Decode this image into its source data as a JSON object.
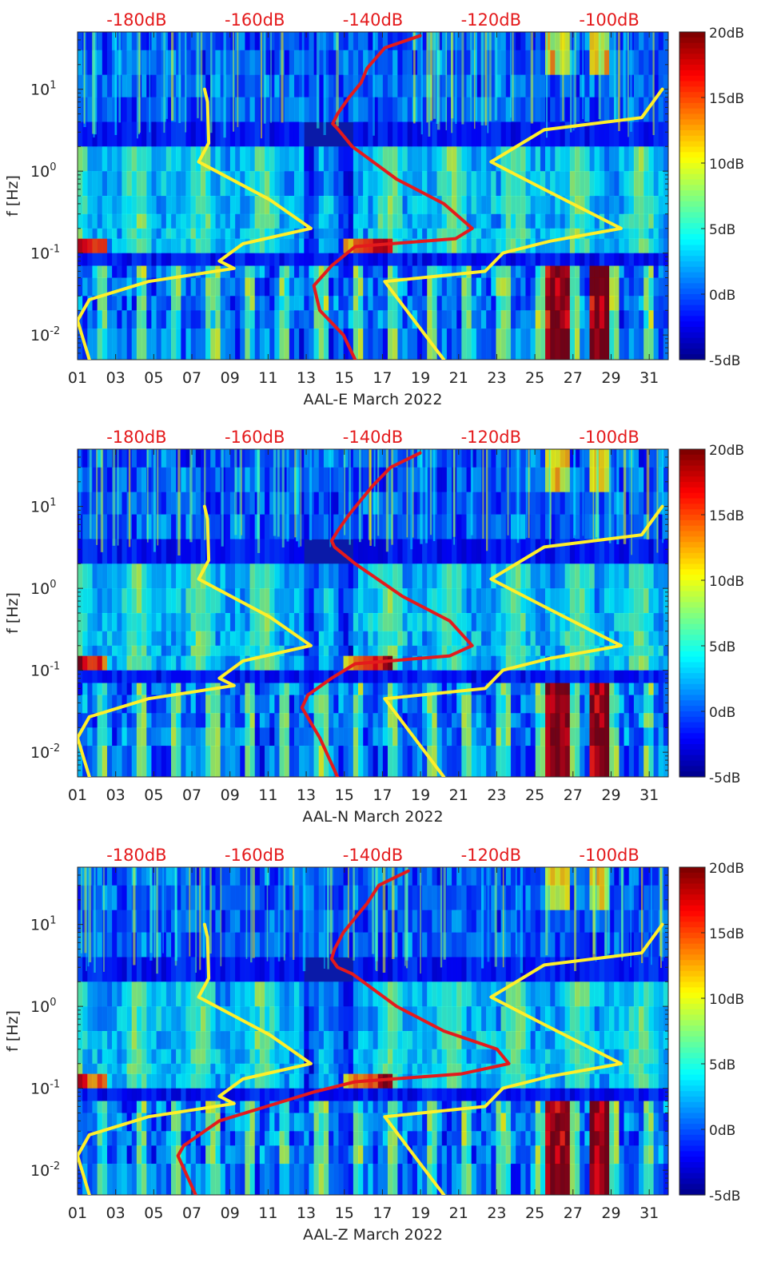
{
  "chart_data": [
    {
      "type": "heatmap",
      "title": "",
      "xlabel": "AAL-E March 2022",
      "ylabel": "f [Hz]",
      "x_ticks": [
        "01",
        "03",
        "05",
        "07",
        "09",
        "11",
        "13",
        "15",
        "17",
        "19",
        "21",
        "23",
        "25",
        "27",
        "29",
        "31"
      ],
      "xlim": [
        1,
        32
      ],
      "y_scale": "log",
      "ylim": [
        0.005,
        50
      ],
      "y_ticks": [
        {
          "value": 10,
          "base": "10",
          "exp": "1"
        },
        {
          "value": 1,
          "base": "10",
          "exp": "0"
        },
        {
          "value": 0.1,
          "base": "10",
          "exp": "-1"
        },
        {
          "value": 0.01,
          "base": "10",
          "exp": "-2"
        }
      ],
      "top_axis_labels": [
        "-180dB",
        "-160dB",
        "-140dB",
        "-120dB",
        "-100dB"
      ],
      "top_axis_range_db": [
        -190,
        -90
      ],
      "colorbar": {
        "ticks": [
          "20dB",
          "15dB",
          "10dB",
          "5dB",
          "0dB",
          "-5dB"
        ],
        "range_db": [
          -5,
          20
        ],
        "colormap": "jet"
      },
      "series": [
        {
          "name": "yellow noise model (low)",
          "color": "#ffef2a",
          "unit": "dB",
          "points": [
            [
              -168.5,
              10
            ],
            [
              -168,
              7
            ],
            [
              -167.8,
              2.2
            ],
            [
              -169.5,
              1.3
            ],
            [
              -157.5,
              0.45
            ],
            [
              -150.5,
              0.2
            ],
            [
              -162,
              0.13
            ],
            [
              -166,
              0.08
            ],
            [
              -163.5,
              0.065
            ],
            [
              -178,
              0.045
            ],
            [
              -188,
              0.027
            ],
            [
              -190,
              0.015
            ],
            [
              -188,
              0.005
            ]
          ]
        },
        {
          "name": "yellow noise model (high)",
          "color": "#ffef2a",
          "unit": "dB",
          "points": [
            [
              -91,
              10
            ],
            [
              -94.5,
              4.5
            ],
            [
              -111,
              3.2
            ],
            [
              -120,
              1.3
            ],
            [
              -111,
              0.6
            ],
            [
              -98,
              0.2
            ],
            [
              -110,
              0.14
            ],
            [
              -118,
              0.1
            ],
            [
              -121,
              0.06
            ],
            [
              -138,
              0.045
            ],
            [
              -128,
              0.005
            ]
          ]
        },
        {
          "name": "red measured spectrum",
          "color": "#e41a1c",
          "unit": "dB",
          "points": [
            [
              -132,
              45
            ],
            [
              -138,
              32
            ],
            [
              -141,
              18
            ],
            [
              -142,
              12
            ],
            [
              -144,
              8
            ],
            [
              -146,
              5
            ],
            [
              -146.8,
              3.8
            ],
            [
              -146,
              3.3
            ],
            [
              -143.5,
              2
            ],
            [
              -136,
              0.8
            ],
            [
              -128,
              0.4
            ],
            [
              -123.2,
              0.2
            ],
            [
              -126,
              0.15
            ],
            [
              -143,
              0.12
            ],
            [
              -147,
              0.07
            ],
            [
              -150,
              0.04
            ],
            [
              -149,
              0.02
            ],
            [
              -145,
              0.01
            ],
            [
              -143,
              0.005
            ]
          ]
        }
      ]
    },
    {
      "type": "heatmap",
      "title": "",
      "xlabel": "AAL-N March 2022",
      "ylabel": "f [Hz]",
      "x_ticks": [
        "01",
        "03",
        "05",
        "07",
        "09",
        "11",
        "13",
        "15",
        "17",
        "19",
        "21",
        "23",
        "25",
        "27",
        "29",
        "31"
      ],
      "xlim": [
        1,
        32
      ],
      "y_scale": "log",
      "ylim": [
        0.005,
        50
      ],
      "y_ticks": [
        {
          "value": 10,
          "base": "10",
          "exp": "1"
        },
        {
          "value": 1,
          "base": "10",
          "exp": "0"
        },
        {
          "value": 0.1,
          "base": "10",
          "exp": "-1"
        },
        {
          "value": 0.01,
          "base": "10",
          "exp": "-2"
        }
      ],
      "top_axis_labels": [
        "-180dB",
        "-160dB",
        "-140dB",
        "-120dB",
        "-100dB"
      ],
      "top_axis_range_db": [
        -190,
        -90
      ],
      "colorbar": {
        "ticks": [
          "20dB",
          "15dB",
          "10dB",
          "5dB",
          "0dB",
          "-5dB"
        ],
        "range_db": [
          -5,
          20
        ],
        "colormap": "jet"
      },
      "series": [
        {
          "name": "yellow noise model (low)",
          "color": "#ffef2a",
          "unit": "dB",
          "points": [
            [
              -168.5,
              10
            ],
            [
              -168,
              7
            ],
            [
              -167.8,
              2.2
            ],
            [
              -169.5,
              1.3
            ],
            [
              -157.5,
              0.45
            ],
            [
              -150.5,
              0.2
            ],
            [
              -162,
              0.13
            ],
            [
              -166,
              0.08
            ],
            [
              -163.5,
              0.065
            ],
            [
              -178,
              0.045
            ],
            [
              -188,
              0.027
            ],
            [
              -190,
              0.015
            ],
            [
              -188,
              0.005
            ]
          ]
        },
        {
          "name": "yellow noise model (high)",
          "color": "#ffef2a",
          "unit": "dB",
          "points": [
            [
              -91,
              10
            ],
            [
              -94.5,
              4.5
            ],
            [
              -111,
              3.2
            ],
            [
              -120,
              1.3
            ],
            [
              -111,
              0.6
            ],
            [
              -98,
              0.2
            ],
            [
              -110,
              0.14
            ],
            [
              -118,
              0.1
            ],
            [
              -121,
              0.06
            ],
            [
              -138,
              0.045
            ],
            [
              -128,
              0.005
            ]
          ]
        },
        {
          "name": "red measured spectrum",
          "color": "#e41a1c",
          "unit": "dB",
          "points": [
            [
              -132,
              45
            ],
            [
              -137,
              30
            ],
            [
              -140,
              18
            ],
            [
              -142,
              12
            ],
            [
              -144,
              8
            ],
            [
              -146,
              5
            ],
            [
              -147,
              3.8
            ],
            [
              -146.5,
              3.2
            ],
            [
              -143,
              2
            ],
            [
              -135,
              0.8
            ],
            [
              -127,
              0.4
            ],
            [
              -123.2,
              0.2
            ],
            [
              -127,
              0.15
            ],
            [
              -143,
              0.12
            ],
            [
              -147,
              0.08
            ],
            [
              -151,
              0.05
            ],
            [
              -152,
              0.035
            ],
            [
              -149,
              0.015
            ],
            [
              -146,
              0.005
            ]
          ]
        }
      ]
    },
    {
      "type": "heatmap",
      "title": "",
      "xlabel": "AAL-Z March 2022",
      "ylabel": "f [Hz]",
      "x_ticks": [
        "01",
        "03",
        "05",
        "07",
        "09",
        "11",
        "13",
        "15",
        "17",
        "19",
        "21",
        "23",
        "25",
        "27",
        "29",
        "31"
      ],
      "xlim": [
        1,
        32
      ],
      "y_scale": "log",
      "ylim": [
        0.005,
        50
      ],
      "y_ticks": [
        {
          "value": 10,
          "base": "10",
          "exp": "1"
        },
        {
          "value": 1,
          "base": "10",
          "exp": "0"
        },
        {
          "value": 0.1,
          "base": "10",
          "exp": "-1"
        },
        {
          "value": 0.01,
          "base": "10",
          "exp": "-2"
        }
      ],
      "top_axis_labels": [
        "-180dB",
        "-160dB",
        "-140dB",
        "-120dB",
        "-100dB"
      ],
      "top_axis_range_db": [
        -190,
        -90
      ],
      "colorbar": {
        "ticks": [
          "20dB",
          "15dB",
          "10dB",
          "5dB",
          "0dB",
          "-5dB"
        ],
        "range_db": [
          -5,
          20
        ],
        "colormap": "jet"
      },
      "series": [
        {
          "name": "yellow noise model (low)",
          "color": "#ffef2a",
          "unit": "dB",
          "points": [
            [
              -168.5,
              10
            ],
            [
              -168,
              7
            ],
            [
              -167.8,
              2.2
            ],
            [
              -169.5,
              1.3
            ],
            [
              -157.5,
              0.45
            ],
            [
              -150.5,
              0.2
            ],
            [
              -162,
              0.13
            ],
            [
              -166,
              0.08
            ],
            [
              -163.5,
              0.065
            ],
            [
              -178,
              0.045
            ],
            [
              -188,
              0.027
            ],
            [
              -190,
              0.015
            ],
            [
              -188,
              0.005
            ]
          ]
        },
        {
          "name": "yellow noise model (high)",
          "color": "#ffef2a",
          "unit": "dB",
          "points": [
            [
              -91,
              10
            ],
            [
              -94.5,
              4.5
            ],
            [
              -111,
              3.2
            ],
            [
              -120,
              1.3
            ],
            [
              -111,
              0.6
            ],
            [
              -98,
              0.2
            ],
            [
              -110,
              0.14
            ],
            [
              -118,
              0.1
            ],
            [
              -121,
              0.06
            ],
            [
              -138,
              0.045
            ],
            [
              -128,
              0.005
            ]
          ]
        },
        {
          "name": "red measured spectrum",
          "color": "#e41a1c",
          "unit": "dB",
          "points": [
            [
              -134,
              45
            ],
            [
              -139,
              30
            ],
            [
              -141,
              18
            ],
            [
              -143,
              12
            ],
            [
              -145,
              8
            ],
            [
              -146.5,
              5
            ],
            [
              -147,
              3.8
            ],
            [
              -146,
              3
            ],
            [
              -143.5,
              2.5
            ],
            [
              -136,
              1
            ],
            [
              -128,
              0.5
            ],
            [
              -119,
              0.3
            ],
            [
              -117,
              0.2
            ],
            [
              -125,
              0.15
            ],
            [
              -143,
              0.12
            ],
            [
              -150,
              0.09
            ],
            [
              -158,
              0.06
            ],
            [
              -166,
              0.04
            ],
            [
              -172,
              0.02
            ],
            [
              -173,
              0.015
            ],
            [
              -170,
              0.005
            ]
          ]
        }
      ]
    }
  ]
}
